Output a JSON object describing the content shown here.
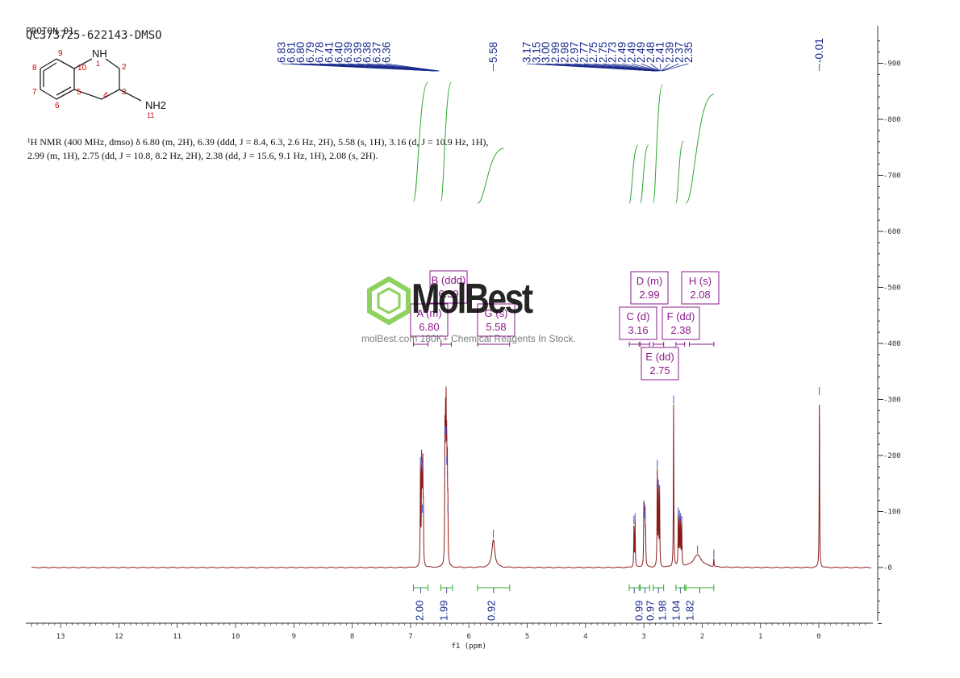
{
  "header": {
    "experiment": "PROTON_01",
    "sample": "QC373725-622143-DMSO"
  },
  "structure": {
    "atoms": [
      "NH",
      "1",
      "2",
      "3",
      "4",
      "5",
      "6",
      "7",
      "8",
      "9",
      "10",
      "NH2",
      "11"
    ]
  },
  "nmr_text": "¹H NMR (400 MHz, dmso) δ 6.80 (m, 2H), 6.39 (ddd, J = 8.4, 6.3, 2.6 Hz, 2H), 5.58 (s, 1H), 3.16 (d, J = 10.9 Hz, 1H), 2.99 (m, 1H), 2.75 (dd, J = 10.8, 8.2 Hz, 2H), 2.38 (dd, J = 15.6, 9.1 Hz, 1H), 2.08 (s, 2H).",
  "watermark": {
    "brand": "MolBest",
    "tagline": "molBest.com 180K+ Chemical Reagents In Stock."
  },
  "colors": {
    "spectrum": "#8b1a1a",
    "peak_label": "#1a2a8c",
    "integral": "#2ea82e",
    "multiplet": "#8c1a8c",
    "logo": "#7ac943"
  },
  "chart_data": {
    "type": "line",
    "xlabel": "f1 (ppm)",
    "xlim": [
      13.5,
      -0.9
    ],
    "ylim": [
      -100,
      950
    ],
    "x_ticks": [
      "13",
      "12",
      "11",
      "10",
      "9",
      "8",
      "7",
      "6",
      "5",
      "4",
      "3",
      "2",
      "1",
      "0"
    ],
    "y_ticks": [
      "900",
      "800",
      "700",
      "600",
      "500",
      "400",
      "300",
      "200",
      "100",
      "0"
    ],
    "peaks_group1": [
      "6.83",
      "6.81",
      "6.80",
      "6.79",
      "6.78",
      "6.41",
      "6.40",
      "6.39",
      "6.39",
      "6.38",
      "6.37",
      "6.36"
    ],
    "peak_single": "5.58",
    "peaks_group2": [
      "3.17",
      "3.15",
      "3.00",
      "2.99",
      "2.98",
      "2.97",
      "2.77",
      "2.75",
      "2.75",
      "2.73",
      "2.49",
      "2.49",
      "2.49",
      "2.48",
      "2.41",
      "2.39",
      "2.37",
      "2.35"
    ],
    "peak_tms": "-0.01",
    "peak_intensities": [
      {
        "x": 6.83,
        "y": 180
      },
      {
        "x": 6.81,
        "y": 175
      },
      {
        "x": 6.8,
        "y": 95
      },
      {
        "x": 6.79,
        "y": 170
      },
      {
        "x": 6.78,
        "y": 90
      },
      {
        "x": 6.41,
        "y": 235
      },
      {
        "x": 6.4,
        "y": 220
      },
      {
        "x": 6.39,
        "y": 235
      },
      {
        "x": 6.38,
        "y": 180
      },
      {
        "x": 6.37,
        "y": 160
      },
      {
        "x": 6.36,
        "y": 95
      },
      {
        "x": 5.58,
        "y": 50
      },
      {
        "x": 3.17,
        "y": 75
      },
      {
        "x": 3.15,
        "y": 80
      },
      {
        "x": 3.0,
        "y": 100
      },
      {
        "x": 2.99,
        "y": 85
      },
      {
        "x": 2.98,
        "y": 85
      },
      {
        "x": 2.97,
        "y": 55
      },
      {
        "x": 2.77,
        "y": 175
      },
      {
        "x": 2.75,
        "y": 140
      },
      {
        "x": 2.73,
        "y": 130
      },
      {
        "x": 2.49,
        "y": 290
      },
      {
        "x": 2.41,
        "y": 90
      },
      {
        "x": 2.39,
        "y": 85
      },
      {
        "x": 2.37,
        "y": 80
      },
      {
        "x": 2.35,
        "y": 75
      },
      {
        "x": 2.08,
        "y": 22
      },
      {
        "x": 1.8,
        "y": 15
      },
      {
        "x": -0.01,
        "y": 305
      }
    ],
    "integrals": [
      {
        "value": "2.00",
        "from": 6.95,
        "to": 6.7
      },
      {
        "value": "1.99",
        "from": 6.48,
        "to": 6.28
      },
      {
        "value": "0.92",
        "from": 5.85,
        "to": 5.3
      },
      {
        "value": "0.99",
        "from": 3.25,
        "to": 3.08
      },
      {
        "value": "0.97",
        "from": 3.06,
        "to": 2.9
      },
      {
        "value": "1.98",
        "from": 2.84,
        "to": 2.66
      },
      {
        "value": "1.04",
        "from": 2.45,
        "to": 2.3
      },
      {
        "value": "1.82",
        "from": 2.28,
        "to": 1.8
      }
    ],
    "multiplets": [
      {
        "letter": "A (m)",
        "shift": "6.80"
      },
      {
        "letter": "B (ddd)",
        "shift": "6.39"
      },
      {
        "letter": "G (s)",
        "shift": "5.58"
      },
      {
        "letter": "D (m)",
        "shift": "2.99"
      },
      {
        "letter": "H (s)",
        "shift": "2.08"
      },
      {
        "letter": "C (d)",
        "shift": "3.16"
      },
      {
        "letter": "F (dd)",
        "shift": "2.38"
      },
      {
        "letter": "E (dd)",
        "shift": "2.75"
      }
    ]
  }
}
